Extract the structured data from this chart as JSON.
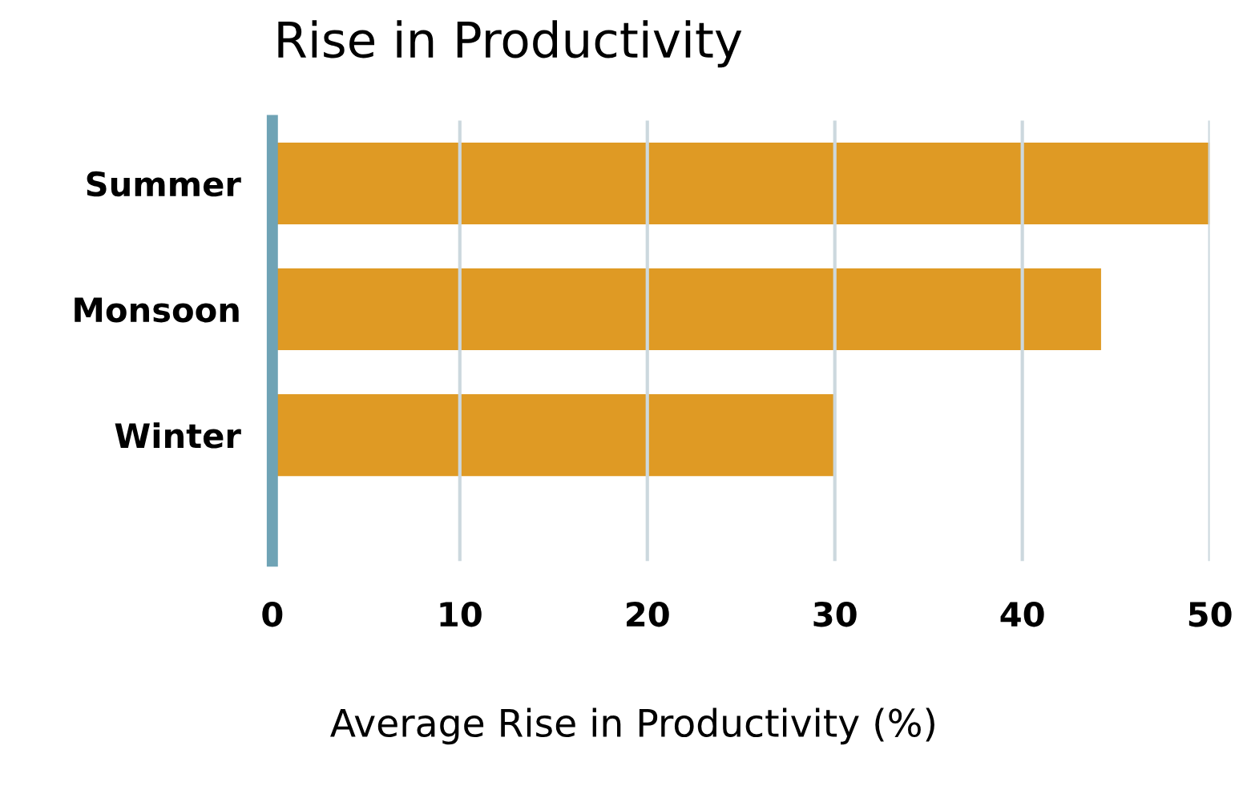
{
  "chart_data": {
    "type": "bar",
    "orientation": "horizontal",
    "title": "Rise in Productivity",
    "xlabel": "Average Rise in Productivity (%)",
    "categories": [
      "Summer",
      "Monsoon",
      "Winter"
    ],
    "values": [
      50,
      44.2,
      30
    ],
    "color": "#df9a24",
    "xlim": [
      0,
      50
    ],
    "xticks": [
      0,
      10,
      20,
      30,
      40,
      50
    ],
    "grid": "x",
    "legend": false
  }
}
